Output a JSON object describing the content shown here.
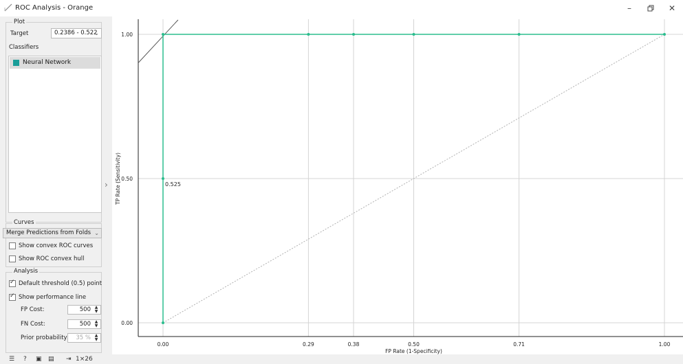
{
  "window": {
    "title": "ROC Analysis - Orange",
    "app_icon": "orange-widget-icon",
    "controls": [
      "minimize-icon",
      "restore-icon",
      "close-icon"
    ]
  },
  "sidebar": {
    "plot_group": {
      "title": "Plot",
      "target_label": "Target",
      "target_value": "0.2386 - 0.522",
      "classifiers_label": "Classifiers",
      "classifiers": [
        {
          "name": "Neural Network",
          "color": "#1a9e99",
          "selected": true
        }
      ]
    },
    "curves_group": {
      "title": "Curves",
      "merge_value": "Merge Predictions from Folds",
      "show_convex_roc_label": "Show convex ROC curves",
      "show_convex_roc_checked": false,
      "show_convex_hull_label": "Show ROC convex hull",
      "show_convex_hull_checked": false
    },
    "analysis_group": {
      "title": "Analysis",
      "default_threshold_label": "Default threshold (0.5) point",
      "default_threshold_checked": true,
      "show_performance_line_label": "Show performance line",
      "show_performance_line_checked": true,
      "fp_cost_label": "FP Cost:",
      "fp_cost_value": "500",
      "fn_cost_label": "FN Cost:",
      "fn_cost_value": "500",
      "prior_probability_label": "Prior probability:",
      "prior_probability_value": "35 %"
    }
  },
  "statusbar": {
    "icons": [
      "menu-icon",
      "help-icon",
      "save-image-icon",
      "report-icon",
      "input-output-icon"
    ],
    "data_info": "1×26"
  },
  "chart_data": {
    "type": "line",
    "xlabel": "FP Rate (1-Specificity)",
    "ylabel": "TP Rate (Sensitivity)",
    "xlim": [
      0,
      1
    ],
    "ylim": [
      0,
      1
    ],
    "x_ticks": [
      "0.00",
      "0.29",
      "0.38",
      "0.50",
      "0.71",
      "1.00"
    ],
    "x_tick_values": [
      0,
      0.29,
      0.38,
      0.5,
      0.71,
      1.0
    ],
    "y_ticks": [
      "0.00",
      "0.50",
      "1.00"
    ],
    "y_tick_values": [
      0,
      0.5,
      1.0
    ],
    "grid": true,
    "series": [
      {
        "color": "#2bbd8e",
        "x": [
          0,
          0,
          0,
          0.29,
          0.38,
          0.5,
          0.71,
          1.0
        ],
        "y": [
          0,
          0.5,
          1.0,
          1.0,
          1.0,
          1.0,
          1.0,
          1.0
        ]
      }
    ],
    "diagonal": {
      "x": [
        0,
        1
      ],
      "y": [
        0,
        1
      ],
      "style": "dotted",
      "color": "#b0b0b0"
    },
    "performance_line": {
      "x": [
        -0.05,
        0.03
      ],
      "y": [
        0.9,
        1.05
      ],
      "color": "#555555"
    },
    "annotations": [
      {
        "text": "0.525",
        "x": 0,
        "y": 0.5
      }
    ]
  }
}
